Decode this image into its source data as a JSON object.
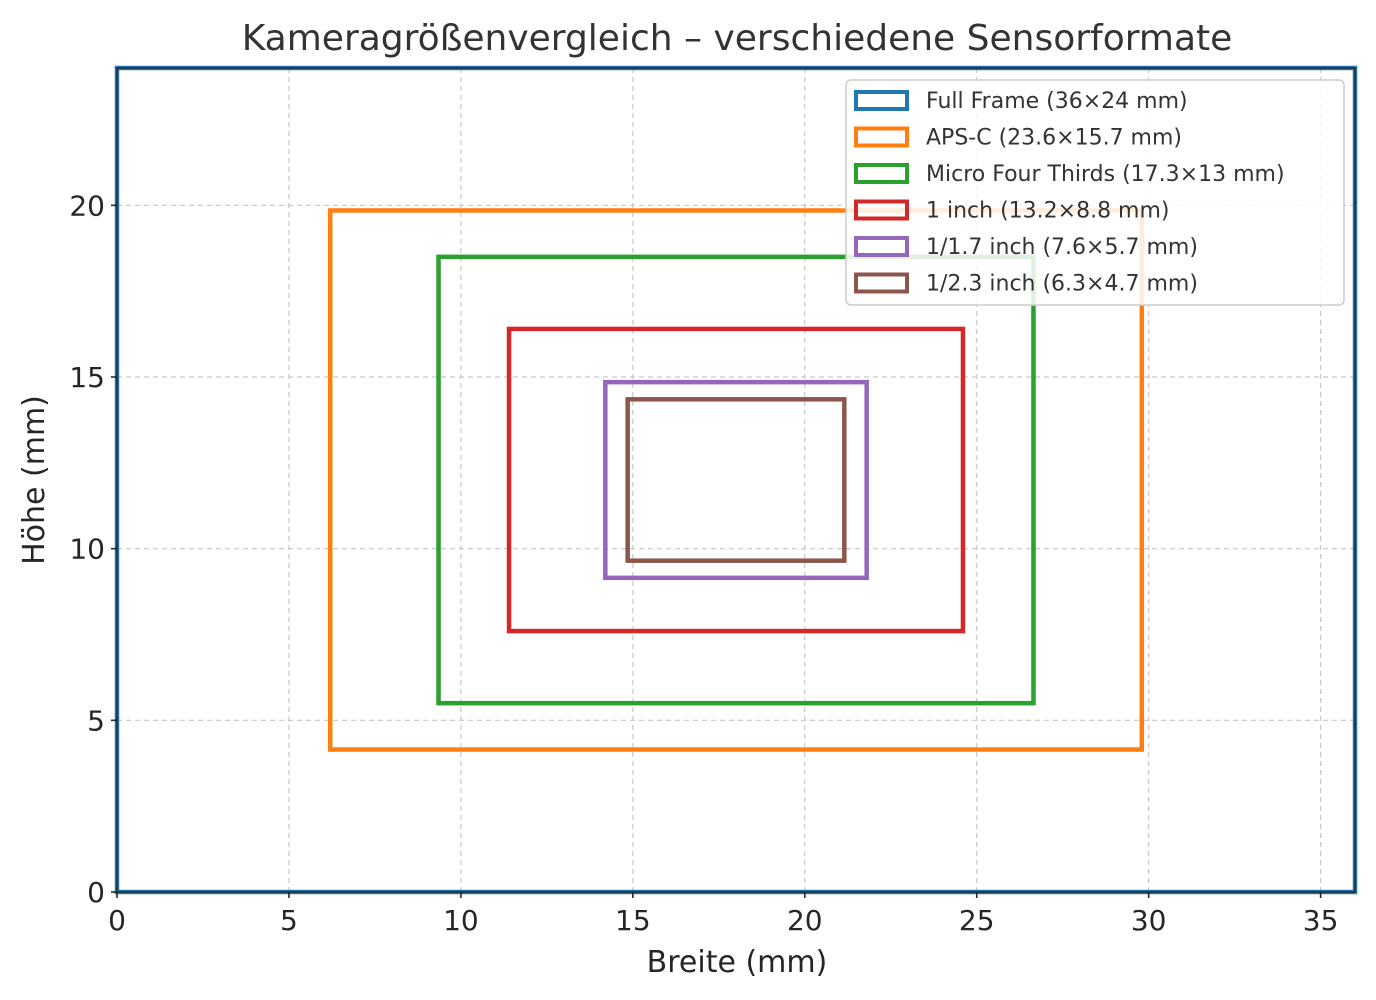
{
  "chart_data": {
    "type": "rectangles",
    "title": "Kameragrößenvergleich – verschiedene Sensorformate",
    "xlabel": "Breite (mm)",
    "ylabel": "Höhe (mm)",
    "xlim": [
      0,
      36
    ],
    "ylim": [
      0,
      24
    ],
    "xticks": [
      "0",
      "5",
      "10",
      "15",
      "20",
      "25",
      "30",
      "35"
    ],
    "yticks": [
      "0",
      "5",
      "10",
      "15",
      "20"
    ],
    "grid": true,
    "legend_position": "top-right",
    "series": [
      {
        "name": "Full Frame (36×24 mm)",
        "color": "#1f77b4",
        "x": 0,
        "y": 0,
        "width": 36,
        "height": 24
      },
      {
        "name": "APS-C (23.6×15.7 mm)",
        "color": "#ff7f0e",
        "x": 6.2,
        "y": 4.15,
        "width": 23.6,
        "height": 15.7
      },
      {
        "name": "Micro Four Thirds (17.3×13 mm)",
        "color": "#2ca02c",
        "x": 9.35,
        "y": 5.5,
        "width": 17.3,
        "height": 13
      },
      {
        "name": "1 inch (13.2×8.8 mm)",
        "color": "#d62728",
        "x": 11.4,
        "y": 7.6,
        "width": 13.2,
        "height": 8.8
      },
      {
        "name": "1/1.7 inch (7.6×5.7 mm)",
        "color": "#9467bd",
        "x": 14.2,
        "y": 9.15,
        "width": 7.6,
        "height": 5.7
      },
      {
        "name": "1/2.3 inch (6.3×4.7 mm)",
        "color": "#8c564b",
        "x": 14.85,
        "y": 9.65,
        "width": 6.3,
        "height": 4.7
      }
    ]
  }
}
